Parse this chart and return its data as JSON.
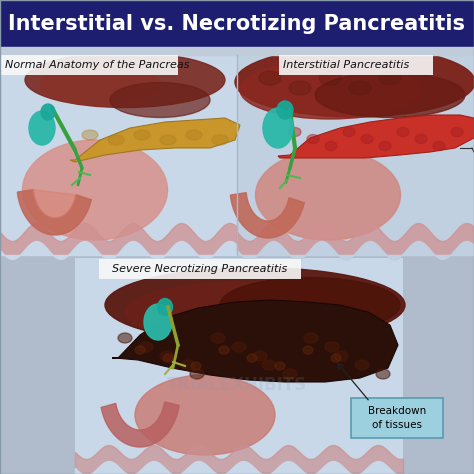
{
  "title": "Interstitial vs. Necrotizing Pancreatitis",
  "title_bg": "#1e1e70",
  "title_color": "#ffffff",
  "title_fontsize": 15,
  "bg_color": "#b0bccc",
  "bg_lower": "#b8c8d8",
  "panel1_label": "Normal Anatomy of the Pancreas",
  "panel2_label": "Interstitial Pancreatitis",
  "panel3_label": "Severe Necrotizing Pancreatitis",
  "annotation_text": "Breakdown\nof tissues",
  "annotation_box_color": "#9dd0de",
  "annotation_border": "#5a9ab0",
  "label_fontsize": 8,
  "white_label_bg": "#f8f8f8",
  "panel_border": "#cccccc",
  "separator_color": "#c0ccda"
}
